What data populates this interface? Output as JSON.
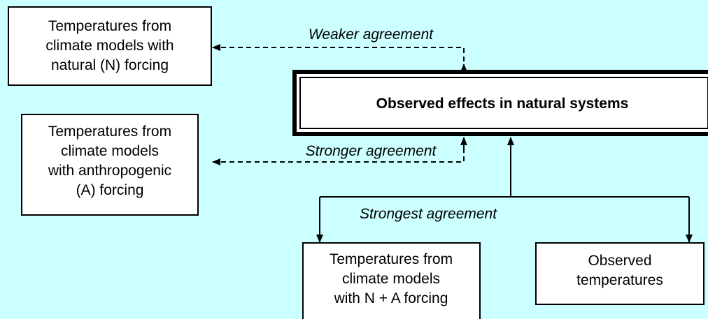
{
  "nodes": [
    {
      "label": [
        "Temperatures from",
        "climate models with",
        "natural (N) forcing"
      ]
    },
    {
      "label": [
        "Temperatures from",
        "climate models",
        "with anthropogenic",
        "(A) forcing"
      ]
    },
    {
      "label": [
        "Observed effects in natural systems"
      ]
    },
    {
      "label": [
        "Temperatures from",
        "climate models",
        "with N + A forcing"
      ]
    },
    {
      "label": [
        "Observed",
        "temperatures"
      ]
    }
  ],
  "edges": [
    {
      "label": "Weaker agreement"
    },
    {
      "label": "Stronger agreement"
    },
    {
      "label": "Strongest agreement"
    }
  ]
}
